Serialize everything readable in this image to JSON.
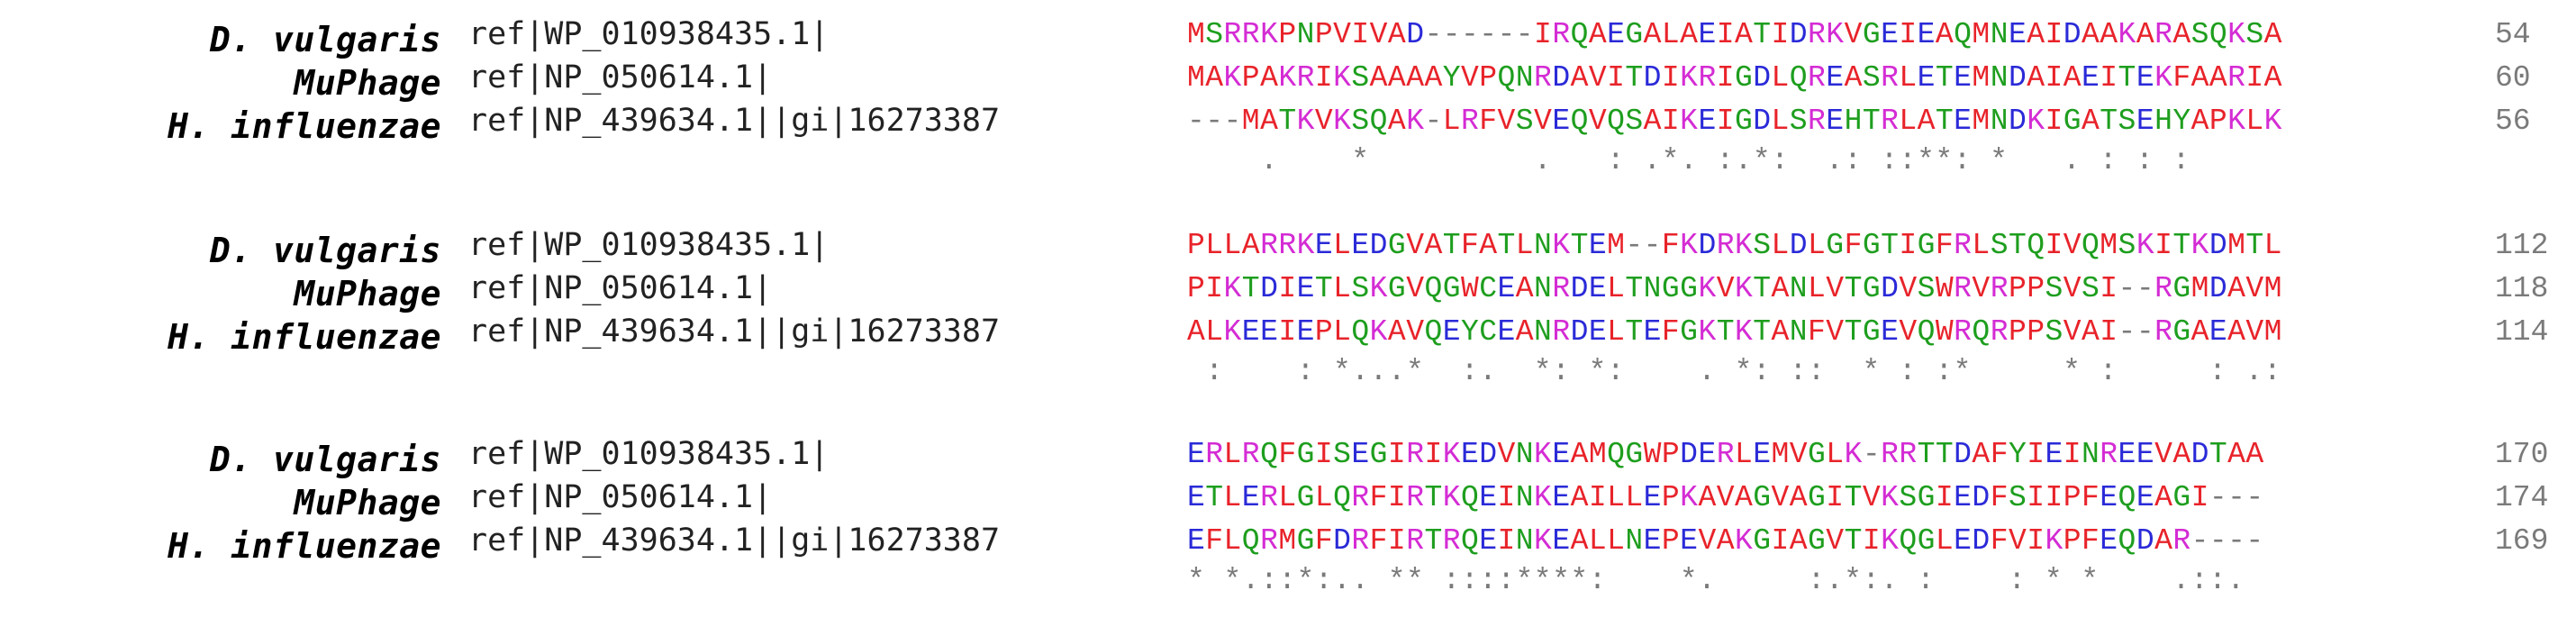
{
  "colors": {
    "red": "#e8232a",
    "blue": "#2a2ad8",
    "magenta": "#d42cd4",
    "green": "#1e9e1e",
    "gray": "#7a7a7a"
  },
  "blocks": [
    {
      "rows": [
        {
          "species": "D. vulgaris",
          "accession": "ref|WP_010938435.1|",
          "sequence": "MSRRKPNPVIVAD------IRQAEGALAEIATIDRKVGEIEAQMNEAIDAAKARASQKSA",
          "count": "54"
        },
        {
          "species": "MuPhage",
          "accession": "ref|NP_050614.1|",
          "sequence": "MAKPAKRIKSAAAAYVPQNRDAVITDIKRIGDLQREASRLETEMNDAIAEITEKFAARIA",
          "count": "60"
        },
        {
          "species": "H. influenzae",
          "accession": "ref|NP_439634.1||gi|16273387",
          "sequence": "---MATKVKSQAK-LRFVSVEQVQSAIKEIGDLSREHTRLATEMNDKIGATSEHYAPKLK",
          "count": "56"
        }
      ],
      "consensus": "    .    *         .   : .*. :.*:  .: ::**: *   . : : :"
    },
    {
      "rows": [
        {
          "species": "D. vulgaris",
          "accession": "ref|WP_010938435.1|",
          "sequence": "PLLARRKELEDGVATFATLNKTEM--FKDRKSLDLGFGTIGFRLSTQIVQMSKITKDMTL",
          "count": "112"
        },
        {
          "species": "MuPhage",
          "accession": "ref|NP_050614.1|",
          "sequence": "PIKTDIETLSKGVQGWCEANRDELTNGGKVKTANLVTGDVSWRVRPPSVSI--RGMDAVM",
          "count": "118"
        },
        {
          "species": "H. influenzae",
          "accession": "ref|NP_439634.1||gi|16273387",
          "sequence": "ALKEEIEPLQKAVQEYCEANRDELTEFGKTKTANFVTGEVQWRQRPPSVAI--RGAEAVM",
          "count": "114"
        }
      ],
      "consensus": " :    : *...*  :.  *: *:    . *: ::  * : :*     * :     : .:"
    },
    {
      "rows": [
        {
          "species": "D. vulgaris",
          "accession": "ref|WP_010938435.1|",
          "sequence": "ERLRQFGISEGIRIKEDVNKEAMQGWPDERLEMVGLK-RRTTDAFYIEINREEVADTAA",
          "count": "170"
        },
        {
          "species": "MuPhage",
          "accession": "ref|NP_050614.1|",
          "sequence": "ETLERLGLQRFIRTKQEINKEAILLEPKAVAGVAGITVKSGIEDFSIIPFEQEAGI---",
          "count": "174"
        },
        {
          "species": "H. influenzae",
          "accession": "ref|NP_439634.1||gi|16273387",
          "sequence": "EFLQRMGFDRFIRTRQEINKEALLNEPEVAKGIAGVTIKQGLEDFVIKPFEQDAR----",
          "count": "169"
        }
      ],
      "consensus": "* *.::*:.. ** ::::****:    *.     :.*:. :    : * *    .::."
    }
  ]
}
